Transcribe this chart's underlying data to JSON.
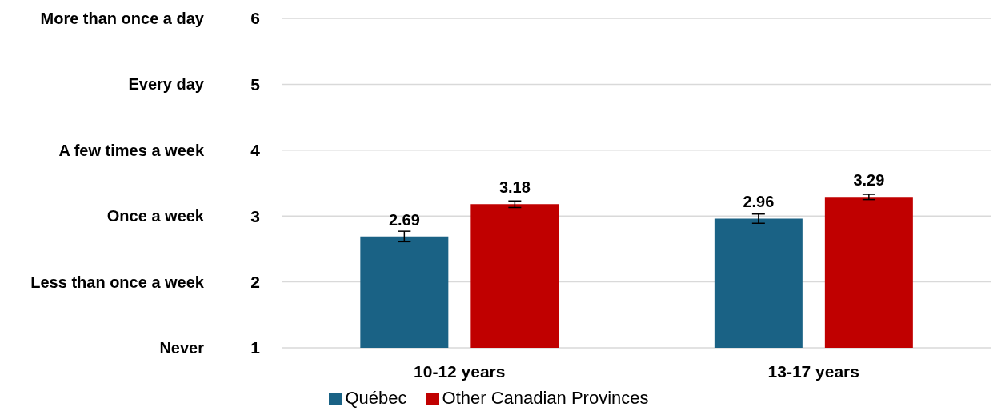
{
  "chart_data": {
    "type": "bar",
    "categories": [
      "10-12 years",
      "13-17 years"
    ],
    "series": [
      {
        "name": "Québec",
        "color": "#1a6285",
        "values": [
          2.69,
          2.96
        ],
        "errors": [
          0.08,
          0.07
        ]
      },
      {
        "name": "Other Canadian Provinces",
        "color": "#c00000",
        "values": [
          3.18,
          3.29
        ],
        "errors": [
          0.05,
          0.04
        ]
      }
    ],
    "ylim": [
      1,
      6
    ],
    "yticks": [
      1,
      2,
      3,
      4,
      5,
      6
    ],
    "annotations": [
      "Never",
      "Less than once a week",
      "Once a week",
      "A few times a week",
      "Every day",
      "More than once a day"
    ],
    "data_labels": true,
    "grid": "y",
    "legend": "bottom"
  }
}
